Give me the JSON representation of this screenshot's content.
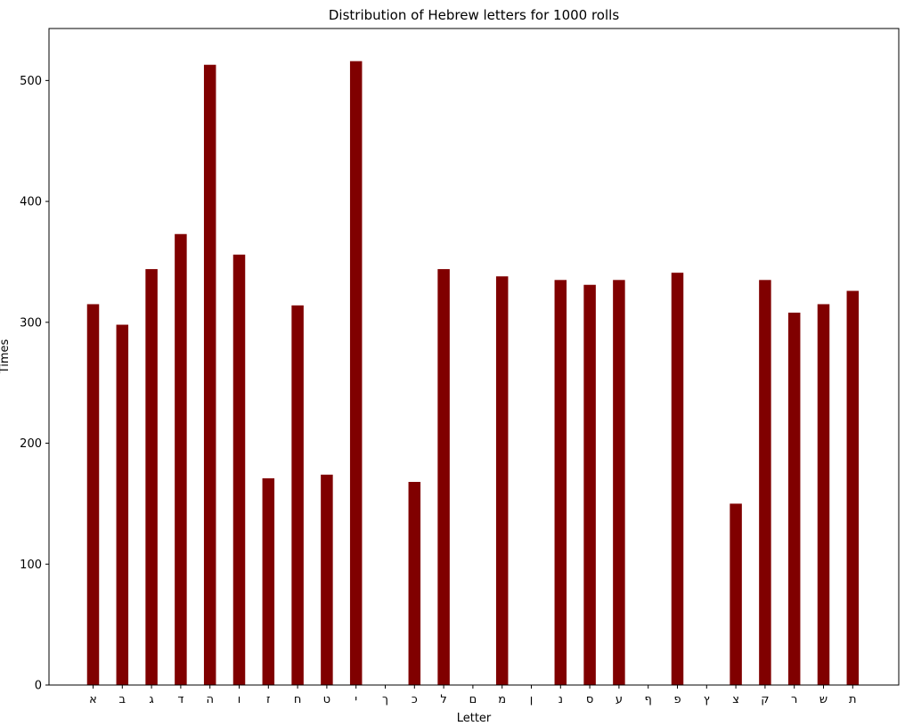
{
  "chart_data": {
    "type": "bar",
    "title": "Distribution of Hebrew letters for 1000 rolls",
    "xlabel": "Letter",
    "ylabel": "Times",
    "ylim": [
      0,
      543
    ],
    "yticks": [
      0,
      100,
      200,
      300,
      400,
      500
    ],
    "grid": false,
    "bar_color": "#800000",
    "categories": [
      "א",
      "ב",
      "ג",
      "ד",
      "ה",
      "ו",
      "ז",
      "ח",
      "ט",
      "י",
      "ך",
      "כ",
      "ל",
      "ם",
      "מ",
      "ן",
      "נ",
      "ס",
      "ע",
      "ף",
      "פ",
      "ץ",
      "צ",
      "ק",
      "ר",
      "ש",
      "ת"
    ],
    "values": [
      315,
      298,
      344,
      373,
      513,
      356,
      171,
      314,
      174,
      516,
      0,
      168,
      344,
      0,
      338,
      0,
      335,
      331,
      335,
      0,
      341,
      0,
      150,
      335,
      308,
      315,
      326
    ]
  }
}
